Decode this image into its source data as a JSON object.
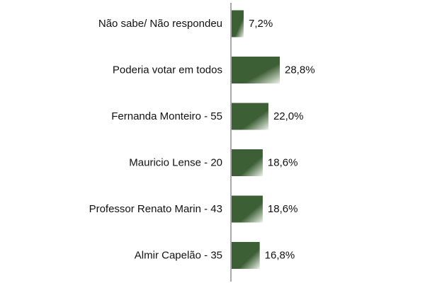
{
  "colors": {
    "bar_dark": "#3d5f36",
    "bar_light": "#eef3ea",
    "axis": "#555555"
  },
  "chart_data": {
    "type": "bar",
    "orientation": "horizontal",
    "categories": [
      "Não sabe/ Não respondeu",
      "Poderia votar em todos",
      "Fernanda Monteiro - 55",
      "Mauricio Lense - 20",
      "Professor Renato Marin - 43",
      "Almir Capelão - 35"
    ],
    "values": [
      7.2,
      28.8,
      22.0,
      18.6,
      18.6,
      16.8
    ],
    "value_labels": [
      "7,2%",
      "28,8%",
      "22,0%",
      "18,6%",
      "18,6%",
      "16,8%"
    ],
    "grid": false,
    "legend": "none"
  }
}
